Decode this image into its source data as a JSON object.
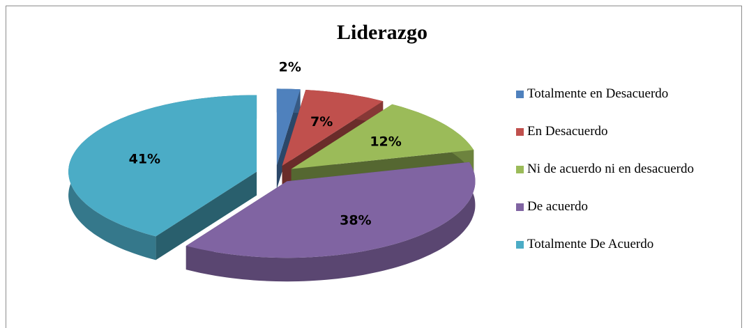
{
  "chart_data": {
    "type": "pie",
    "title": "Liderazgo",
    "categories": [
      "Totalmente en Desacuerdo",
      "En Desacuerdo",
      "Ni de acuerdo ni en desacuerdo",
      "De acuerdo",
      "Totalmente De Acuerdo"
    ],
    "values": [
      2,
      7,
      12,
      38,
      41
    ],
    "value_labels": [
      "2%",
      "7%",
      "12%",
      "38%",
      "41%"
    ],
    "colors": [
      "#4f81bd",
      "#c0504d",
      "#9bbb59",
      "#8064a2",
      "#4bacc6"
    ],
    "legend": "right"
  }
}
